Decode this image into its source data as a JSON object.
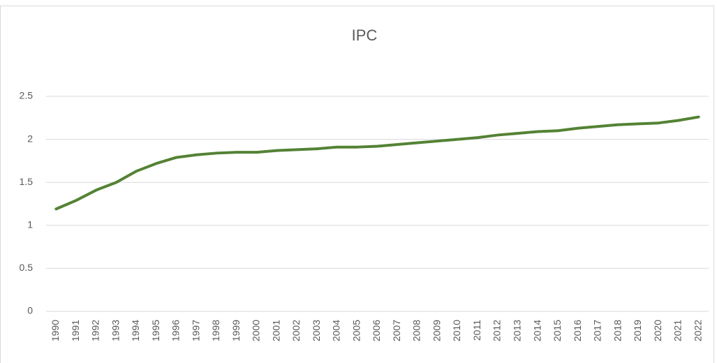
{
  "chart_data": {
    "type": "line",
    "title": "IPC",
    "categories": [
      "1990",
      "1991",
      "1992",
      "1993",
      "1994",
      "1995",
      "1996",
      "1997",
      "1998",
      "1999",
      "2000",
      "2001",
      "2002",
      "2003",
      "2004",
      "2005",
      "2006",
      "2007",
      "2008",
      "2009",
      "2010",
      "2011",
      "2012",
      "2013",
      "2014",
      "2015",
      "2016",
      "2017",
      "2018",
      "2019",
      "2020",
      "2021",
      "2022"
    ],
    "series": [
      {
        "name": "IPC",
        "color": "#548235",
        "values": [
          1.19,
          1.29,
          1.41,
          1.5,
          1.63,
          1.72,
          1.79,
          1.82,
          1.84,
          1.85,
          1.85,
          1.87,
          1.88,
          1.89,
          1.91,
          1.91,
          1.92,
          1.94,
          1.96,
          1.98,
          2.0,
          2.02,
          2.05,
          2.07,
          2.09,
          2.1,
          2.13,
          2.15,
          2.17,
          2.18,
          2.19,
          2.22,
          2.26
        ]
      }
    ],
    "ylim": [
      0,
      2.5
    ],
    "yticks": [
      0,
      0.5,
      1,
      1.5,
      2,
      2.5
    ],
    "grid": true
  }
}
